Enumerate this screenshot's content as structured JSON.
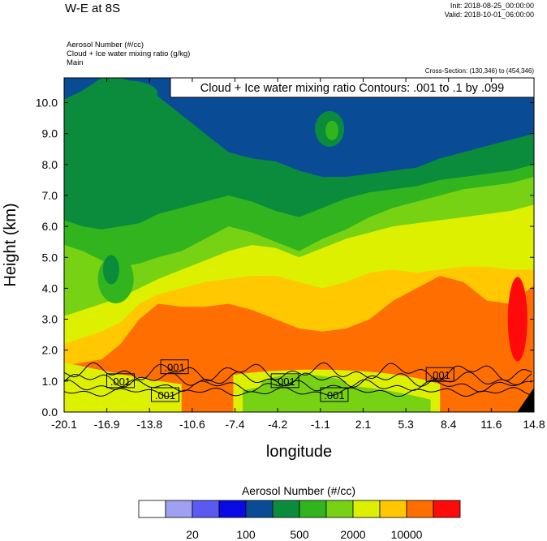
{
  "header": {
    "title": "W-E at 8S",
    "init": "Init: 2018-08-25_00:00:00",
    "valid": "Valid: 2018-10-01_06:00:00",
    "fields": [
      "Aerosol Number   (#/cc)",
      "Cloud + Ice water mixing ratio   (g/kg)",
      "Main"
    ],
    "cross_section": "Cross-Section: (130,346) to (454,346)"
  },
  "chart_data": {
    "type": "heatmap",
    "title": "W-E at 8S",
    "xlabel": "longitude",
    "ylabel": "Height (km)",
    "ylim": [
      0,
      10.8
    ],
    "xlim": [
      -20.1,
      14.8
    ],
    "x_ticks": [
      "-20.1",
      "-16.9",
      "-13.8",
      "-10.6",
      "-7.4",
      "-4.2",
      "-1.1",
      "2.1",
      "5.3",
      "8.4",
      "11.6",
      "14.8"
    ],
    "y_ticks": [
      "0.0",
      "1.0",
      "2.0",
      "3.0",
      "4.0",
      "5.0",
      "6.0",
      "7.0",
      "8.0",
      "9.0",
      "10.0"
    ],
    "contour_info": "Cloud + Ice water mixing ratio Contours: .001 to .1 by .099",
    "contour_labels": [
      ".001",
      ".001",
      ".001",
      ".001",
      ".001",
      ".001"
    ],
    "colorbar": {
      "title": "Aerosol Number  (#/cc)",
      "tick_labels": [
        "20",
        "100",
        "500",
        "2000",
        "10000"
      ],
      "colors": [
        "#ffffff",
        "#a0a0f0",
        "#5a5af2",
        "#0a0ae6",
        "#0a4b96",
        "#0a8c3c",
        "#32b41e",
        "#78d214",
        "#dcf000",
        "#ffc800",
        "#ff6e00",
        "#ff0a0a"
      ]
    },
    "fill_levels": [
      {
        "name": "dark-blue",
        "color": "#0a4b96"
      },
      {
        "name": "dark-green",
        "color": "#0a8c3c"
      },
      {
        "name": "green",
        "color": "#32b41e"
      },
      {
        "name": "light-green",
        "color": "#78d214"
      },
      {
        "name": "yellow",
        "color": "#dcf000"
      },
      {
        "name": "gold",
        "color": "#ffc800"
      },
      {
        "name": "orange",
        "color": "#ff6e00"
      },
      {
        "name": "red",
        "color": "#ff0a0a"
      }
    ]
  }
}
